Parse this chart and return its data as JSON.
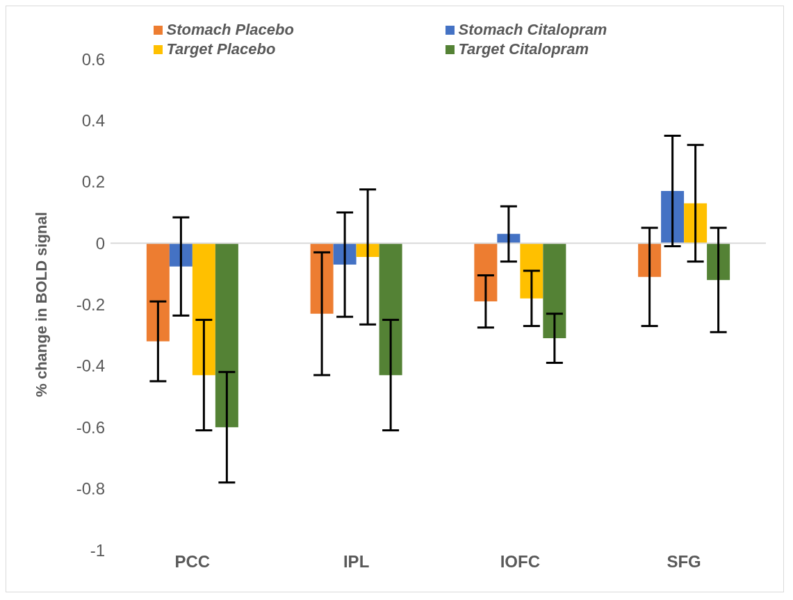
{
  "chart_data": {
    "type": "bar",
    "ylabel": "% change in BOLD signal",
    "categories": [
      "PCC",
      "IPL",
      "IOFC",
      "SFG"
    ],
    "series": [
      {
        "name": "Stomach Placebo",
        "color": "#ed7d31",
        "values": [
          -0.32,
          -0.23,
          -0.19,
          -0.11
        ],
        "errors": [
          0.13,
          0.2,
          0.085,
          0.16
        ]
      },
      {
        "name": "Stomach Citalopram",
        "color": "#4472c4",
        "values": [
          -0.076,
          -0.07,
          0.03,
          0.17
        ],
        "errors": [
          0.16,
          0.17,
          0.09,
          0.18
        ]
      },
      {
        "name": "Target Placebo",
        "color": "#ffc000",
        "values": [
          -0.43,
          -0.045,
          -0.18,
          0.13
        ],
        "errors": [
          0.18,
          0.22,
          0.09,
          0.19
        ]
      },
      {
        "name": "Target Citalopram",
        "color": "#548235",
        "values": [
          -0.6,
          -0.43,
          -0.31,
          -0.12
        ],
        "errors": [
          0.18,
          0.18,
          0.08,
          0.17
        ]
      }
    ],
    "ylim": [
      -1,
      0.6
    ],
    "yticks": [
      -1,
      -0.8,
      -0.6,
      -0.4,
      -0.2,
      0,
      0.2,
      0.4,
      0.6
    ],
    "ref_lines": [
      {
        "axis": "y",
        "value": 0,
        "color": "#d9d9d9"
      }
    ],
    "grid": false,
    "legend": "top"
  }
}
